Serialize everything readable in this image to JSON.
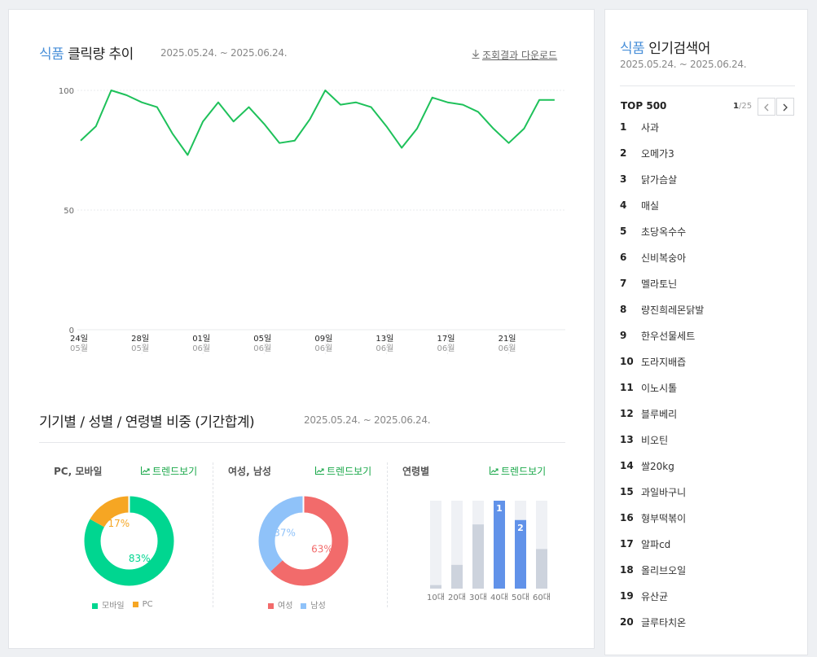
{
  "main": {
    "trend_title_accent": "식품",
    "trend_title_rest": "클릭량 추이",
    "trend_period": "2025.05.24. ~ 2025.06.24.",
    "download_label": "조회결과 다운로드",
    "ratio_title": "기기별 / 성별 / 연령별 비중 (기간합계)",
    "ratio_period": "2025.05.24. ~ 2025.06.24.",
    "trend_button_label": "트렌드보기",
    "device_title": "PC, 모바일",
    "gender_title": "여성, 남성",
    "age_title": "연령별"
  },
  "chart_data": [
    {
      "type": "line",
      "title": "식품 클릭량 추이",
      "series": [
        {
          "color": "#1ec15a",
          "values": [
            79,
            85,
            100,
            98,
            95,
            93,
            82,
            73,
            87,
            95,
            87,
            93,
            86,
            78,
            79,
            88,
            100,
            94,
            95,
            93,
            85,
            76,
            84,
            97,
            95,
            94,
            91,
            84,
            78,
            84,
            96,
            96
          ]
        }
      ],
      "ylim": [
        0,
        100
      ],
      "yticks": [
        "0",
        "50",
        "100"
      ],
      "xticks": [
        {
          "index": 0,
          "day": "24일",
          "month": "05월"
        },
        {
          "index": 4,
          "day": "28일",
          "month": "05월"
        },
        {
          "index": 8,
          "day": "01일",
          "month": "06월"
        },
        {
          "index": 12,
          "day": "05일",
          "month": "06월"
        },
        {
          "index": 16,
          "day": "09일",
          "month": "06월"
        },
        {
          "index": 20,
          "day": "13일",
          "month": "06월"
        },
        {
          "index": 24,
          "day": "17일",
          "month": "06월"
        },
        {
          "index": 28,
          "day": "21일",
          "month": "06월"
        }
      ],
      "grid": true
    },
    {
      "type": "pie",
      "title": "PC, 모바일",
      "slices": [
        {
          "name": "모바일",
          "value": 83,
          "label": "83%",
          "color": "#00d690"
        },
        {
          "name": "PC",
          "value": 17,
          "label": "17%",
          "color": "#f6a623"
        }
      ]
    },
    {
      "type": "pie",
      "title": "여성, 남성",
      "slices": [
        {
          "name": "여성",
          "value": 63,
          "label": "63%",
          "color": "#f26b6b"
        },
        {
          "name": "남성",
          "value": 37,
          "label": "37%",
          "color": "#8fc2f9"
        }
      ]
    },
    {
      "type": "bar",
      "title": "연령별",
      "categories": [
        "10대",
        "20대",
        "30대",
        "40대",
        "50대",
        "60대"
      ],
      "values": [
        4,
        27,
        73,
        100,
        78,
        45
      ],
      "rank_labels": [
        "",
        "",
        "",
        "1",
        "2",
        ""
      ],
      "colors": {
        "normal": "#cdd3dd",
        "top": "#6192e9",
        "track": "#eff1f5"
      }
    }
  ],
  "sidebar": {
    "title_accent": "식품",
    "title_rest": "인기검색어",
    "period": "2025.05.24. ~ 2025.06.24.",
    "top_label": "TOP 500",
    "page_current": "1",
    "page_total": "/25",
    "prev_icon": "chevron-left",
    "next_icon": "chevron-right",
    "items": [
      {
        "rank": "1",
        "keyword": "사과"
      },
      {
        "rank": "2",
        "keyword": "오메가3"
      },
      {
        "rank": "3",
        "keyword": "닭가슴살"
      },
      {
        "rank": "4",
        "keyword": "매실"
      },
      {
        "rank": "5",
        "keyword": "초당옥수수"
      },
      {
        "rank": "6",
        "keyword": "신비복숭아"
      },
      {
        "rank": "7",
        "keyword": "멜라토닌"
      },
      {
        "rank": "8",
        "keyword": "량진희레몬닭발"
      },
      {
        "rank": "9",
        "keyword": "한우선물세트"
      },
      {
        "rank": "10",
        "keyword": "도라지배즙"
      },
      {
        "rank": "11",
        "keyword": "이노시톨"
      },
      {
        "rank": "12",
        "keyword": "블루베리"
      },
      {
        "rank": "13",
        "keyword": "비오틴"
      },
      {
        "rank": "14",
        "keyword": "쌀20kg"
      },
      {
        "rank": "15",
        "keyword": "과일바구니"
      },
      {
        "rank": "16",
        "keyword": "형부떡볶이"
      },
      {
        "rank": "17",
        "keyword": "알파cd"
      },
      {
        "rank": "18",
        "keyword": "올리브오일"
      },
      {
        "rank": "19",
        "keyword": "유산균"
      },
      {
        "rank": "20",
        "keyword": "글루타치온"
      }
    ]
  }
}
